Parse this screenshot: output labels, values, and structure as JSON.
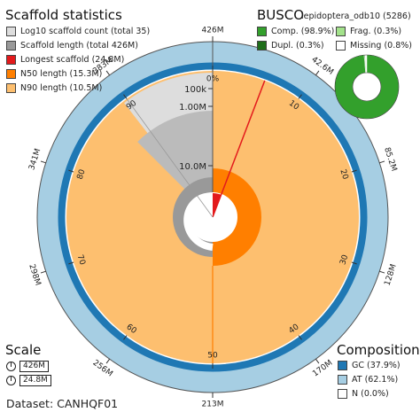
{
  "chart_data": {
    "type": "snail",
    "title": "Scaffold statistics",
    "dataset_label": "Dataset: CANHQF01",
    "assembly_span": "426M",
    "longest_scaffold": "24.8M",
    "legend": [
      {
        "label": "Log10 scaffold count (total 35)",
        "color": "#dddddd"
      },
      {
        "label": "Scaffold length (total 426M)",
        "color": "#999999"
      },
      {
        "label": "Longest scaffold (24.8M)",
        "color": "#e31a1c"
      },
      {
        "label": "N50 length (15.3M)",
        "color": "#ff7f00"
      },
      {
        "label": "N90 length (10.5M)",
        "color": "#fdbf6f"
      }
    ],
    "outer_ticks": [
      "426M",
      "42.6M",
      "85.2M",
      "128M",
      "170M",
      "213M",
      "256M",
      "298M",
      "341M",
      "383M"
    ],
    "percent_ticks": [
      "0%",
      "10",
      "20",
      "30",
      "40",
      "50",
      "60",
      "70",
      "80",
      "90"
    ],
    "radial_ticks": [
      "100k",
      "1.00M",
      "10.0M"
    ],
    "n50_percent": 50,
    "n90_percent": 90,
    "longest_scaffold_percent": 5.8,
    "busco": {
      "title": "BUSCO",
      "lineage": "lepidoptera_odb10 (5286)",
      "complete": 98.9,
      "fragmented": 0.3,
      "duplicated": 0.3,
      "missing": 0.8,
      "legend": [
        {
          "label": "Comp. (98.9%)",
          "color": "#33a02c"
        },
        {
          "label": "Frag. (0.3%)",
          "color": "#a3e28b"
        },
        {
          "label": "Dupl. (0.3%)",
          "color": "#1f6e1a"
        },
        {
          "label": "Missing (0.8%)",
          "color": "#ffffff"
        }
      ]
    },
    "composition": {
      "title": "Composition",
      "gc": 37.9,
      "at": 62.1,
      "n": 0.0,
      "legend": [
        {
          "label": "GC (37.9%)",
          "color": "#1f78b4"
        },
        {
          "label": "AT (62.1%)",
          "color": "#a6cee3"
        },
        {
          "label": "N (0.0%)",
          "color": "#ffffff"
        }
      ]
    },
    "scale": {
      "title": "Scale",
      "items": [
        "426M",
        "24.8M"
      ]
    }
  }
}
